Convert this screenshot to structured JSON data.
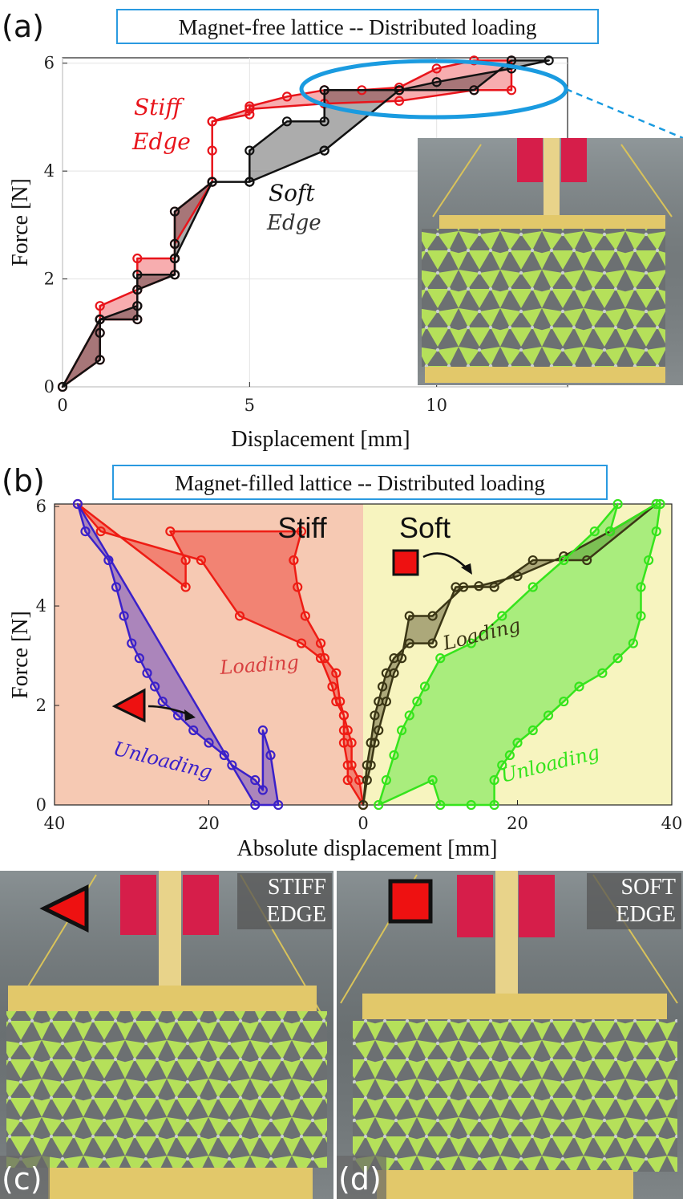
{
  "panel_a": {
    "letter": "(a)",
    "title": "Magnet-free lattice -- Distributed loading",
    "annotations": {
      "stiff_1": "Stiff",
      "stiff_2": "Edge",
      "soft_1": "Soft",
      "soft_2": "Edge"
    },
    "colors": {
      "stiff": "#e8141b",
      "soft": "#111111",
      "highlight": "#1a9be0"
    }
  },
  "panel_b": {
    "letter": "(b)",
    "title": "Magnet-filled lattice -- Distributed loading",
    "region_left": "Stiff",
    "region_right": "Soft",
    "labels": {
      "loading_left": "Loading",
      "loading_right": "Loading",
      "unloading_left": "Unloading",
      "unloading_right": "Unloading"
    },
    "colors": {
      "stiff_bg": "#f6c9b3",
      "soft_bg": "#f7f4bf",
      "stiff_load": "#ee1c14",
      "stiff_unload": "#3b21c9",
      "soft_load": "#3b3615",
      "soft_unload": "#35e41c"
    }
  },
  "panel_c": {
    "letter": "(c)",
    "label_1": "STIFF",
    "label_2": "EDGE"
  },
  "panel_d": {
    "letter": "(d)",
    "label_1": "SOFT",
    "label_2": "EDGE"
  },
  "chart_data": [
    {
      "type": "line",
      "title": "Magnet-free lattice -- Distributed loading",
      "xlabel": "Displacement [mm]",
      "ylabel": "Force [N]",
      "xlim": [
        0,
        13.5
      ],
      "ylim": [
        0,
        6.1
      ],
      "xticks": [
        0,
        5,
        10
      ],
      "yticks": [
        0,
        2,
        4,
        6
      ],
      "grid": true,
      "series": [
        {
          "name": "Stiff Edge",
          "color": "#e8141b",
          "x": [
            0,
            1,
            1,
            1,
            2,
            2,
            2,
            3,
            3,
            3,
            3,
            4,
            4,
            4,
            5,
            5,
            6,
            7,
            7,
            8,
            9,
            10,
            11,
            12,
            12,
            11,
            9,
            7,
            5,
            4,
            4,
            3,
            3,
            2,
            2,
            1,
            1
          ],
          "y": [
            0,
            0.5,
            1.0,
            1.25,
            1.25,
            1.5,
            1.8,
            2.08,
            2.38,
            2.65,
            3.25,
            3.8,
            4.38,
            4.92,
            5.05,
            5.2,
            5.38,
            5.5,
            5.5,
            5.5,
            5.55,
            5.9,
            6.05,
            6.05,
            5.5,
            5.5,
            5.3,
            5.25,
            5.15,
            4.92,
            3.8,
            2.65,
            2.38,
            2.38,
            1.8,
            1.5,
            1.25
          ]
        },
        {
          "name": "Soft Edge",
          "color": "#111111",
          "x": [
            0,
            1,
            1,
            1,
            2,
            2,
            2,
            3,
            3,
            3,
            3,
            4,
            5,
            5,
            6,
            7,
            7,
            9,
            11,
            12,
            13,
            12,
            10,
            9,
            7,
            7,
            5,
            5,
            4,
            3,
            3,
            2,
            2,
            1
          ],
          "y": [
            0,
            0.5,
            1.0,
            1.25,
            1.25,
            1.5,
            1.8,
            2.08,
            2.38,
            2.65,
            3.25,
            3.8,
            3.8,
            4.38,
            4.92,
            4.92,
            5.5,
            5.5,
            5.5,
            6.05,
            6.05,
            5.9,
            5.65,
            5.5,
            4.38,
            4.38,
            3.8,
            3.8,
            3.8,
            2.38,
            2.08,
            2.08,
            1.5,
            1.25
          ]
        }
      ]
    },
    {
      "type": "line",
      "title": "Magnet-filled lattice -- Distributed loading",
      "xlabel": "Absolute displacement [mm]",
      "ylabel": "Force [N]",
      "xlim": [
        -40,
        40
      ],
      "ylim": [
        0,
        6.05
      ],
      "xticks": [
        -40,
        -20,
        0,
        20,
        40
      ],
      "xticklabels": [
        "40",
        "20",
        "0",
        "20",
        "40"
      ],
      "yticks": [
        0,
        2,
        4,
        6
      ],
      "series": [
        {
          "name": "Stiff loading",
          "color": "#ee1c14",
          "x": [
            0,
            -2,
            -2,
            -2.5,
            -2.5,
            -2.5,
            -3,
            -3.5,
            -5,
            -5.5,
            -7.5,
            -8.5,
            -9,
            -9,
            -8,
            -25,
            -23,
            -23,
            -37,
            -34,
            -21,
            -16,
            -8,
            -5.5,
            -4,
            -3.5,
            -2.5,
            -2,
            -1.5,
            -1.5,
            -0.5
          ],
          "y": [
            0,
            0.5,
            0.8,
            1.25,
            1.5,
            1.8,
            2.08,
            2.65,
            2.95,
            3.25,
            3.8,
            4.38,
            4.92,
            4.92,
            5.5,
            5.5,
            4.92,
            4.38,
            6.05,
            5.5,
            4.92,
            3.8,
            3.25,
            2.95,
            2.38,
            2.08,
            1.8,
            1.5,
            1.25,
            0.8,
            0.5
          ]
        },
        {
          "name": "Stiff unloading",
          "color": "#3b21c9",
          "x": [
            -37,
            -36,
            -33,
            -32,
            -31,
            -30,
            -29,
            -28,
            -27,
            -26,
            -24,
            -22,
            -20,
            -18,
            -17,
            -14,
            -13,
            -13,
            -12,
            -11,
            -14
          ],
          "y": [
            6.05,
            5.5,
            4.92,
            4.38,
            3.8,
            3.25,
            2.95,
            2.65,
            2.38,
            2.08,
            1.8,
            1.5,
            1.25,
            1.0,
            0.8,
            0.5,
            0.3,
            1.5,
            1.0,
            0,
            0
          ]
        },
        {
          "name": "Soft loading",
          "color": "#3b3615",
          "x": [
            0,
            0.5,
            1,
            1.5,
            2,
            3,
            4,
            5,
            6,
            9,
            13,
            17,
            22,
            29,
            38,
            32,
            26,
            20,
            15,
            12,
            9,
            6,
            4,
            3,
            2.5,
            2,
            1.5,
            1,
            0.5
          ],
          "y": [
            0,
            0.5,
            0.8,
            1.25,
            1.5,
            2.08,
            2.65,
            2.95,
            3.8,
            3.8,
            4.38,
            4.38,
            4.92,
            4.92,
            6.05,
            5.5,
            5.0,
            4.6,
            4.4,
            4.38,
            3.25,
            3.25,
            2.95,
            2.65,
            2.38,
            2.08,
            1.8,
            1.25,
            0.8
          ]
        },
        {
          "name": "Soft unloading",
          "color": "#35e41c",
          "x": [
            38,
            38.5,
            38,
            37,
            36,
            36,
            35,
            33,
            31,
            28,
            26,
            24,
            22,
            20,
            19,
            18,
            17,
            17,
            14,
            10,
            9,
            2,
            3,
            4,
            5,
            6,
            7,
            8,
            10,
            14,
            18,
            22,
            26,
            30,
            33,
            32
          ],
          "y": [
            6.05,
            6.05,
            5.5,
            4.92,
            4.38,
            3.8,
            3.25,
            2.95,
            2.65,
            2.38,
            2.08,
            1.8,
            1.5,
            1.25,
            1.0,
            0.8,
            0.5,
            0,
            0,
            0,
            0.5,
            0,
            0.5,
            1.0,
            1.5,
            1.8,
            2.08,
            2.38,
            2.95,
            3.25,
            3.8,
            4.38,
            4.92,
            5.5,
            6.05,
            5.5
          ]
        }
      ]
    }
  ]
}
